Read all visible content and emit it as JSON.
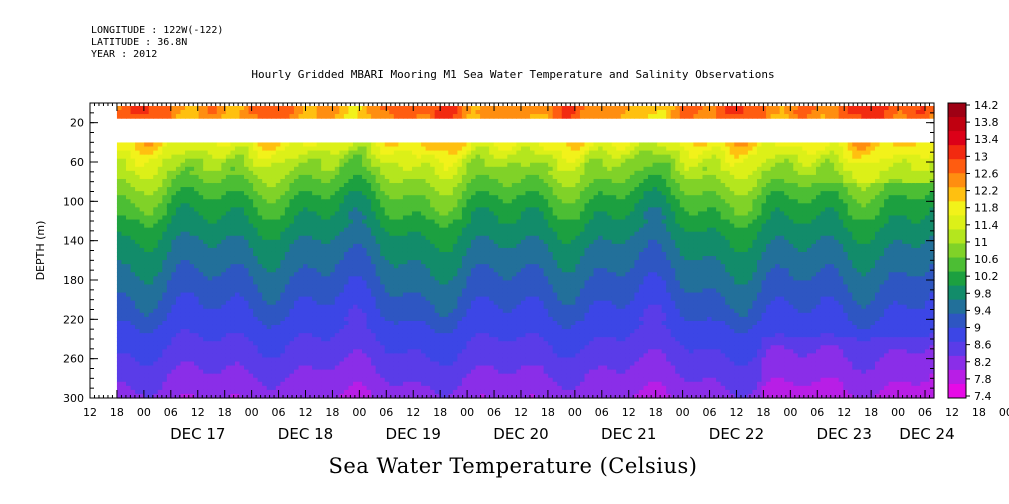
{
  "header": {
    "longitude": "LONGITUDE : 122W(-122)",
    "latitude": "LATITUDE : 36.8N",
    "year": "YEAR : 2012"
  },
  "title": "Hourly Gridded MBARI Mooring M1 Sea Water Temperature and Salinity Observations",
  "plot_title": "Sea Water Temperature (Celsius)",
  "colors": {
    "background": "#ffffff",
    "frame": "#000000"
  },
  "chart_data": {
    "type": "heatmap",
    "title": "Hourly Gridded MBARI Mooring M1 Sea Water Temperature and Salinity Observations",
    "subtitle": "Sea Water Temperature (Celsius)",
    "xlabel": "",
    "ylabel": "DEPTH (m)",
    "ylim": [
      300,
      0
    ],
    "y_reversed": true,
    "x_range_hours": [
      "DEC 16 12:00",
      "DEC 24 08:00"
    ],
    "x_hour_ticks": [
      "12",
      "18",
      "00",
      "06",
      "12",
      "18",
      "00",
      "06",
      "12",
      "18",
      "00",
      "06",
      "12",
      "18",
      "00",
      "06",
      "12",
      "18",
      "00",
      "06",
      "12",
      "18",
      "00",
      "06",
      "12",
      "18",
      "00",
      "06",
      "12",
      "18",
      "00",
      "06",
      "12",
      "18",
      "00",
      "06"
    ],
    "x_day_labels": [
      "DEC 17",
      "DEC 18",
      "DEC 19",
      "DEC 20",
      "DEC 21",
      "DEC 22",
      "DEC 23",
      "DEC 24"
    ],
    "y_ticks": [
      20,
      60,
      100,
      140,
      180,
      220,
      260,
      300
    ],
    "colorbar": {
      "levels": [
        7.4,
        7.8,
        8.2,
        8.6,
        9,
        9.4,
        9.8,
        10.2,
        10.6,
        11,
        11.4,
        11.8,
        12.2,
        12.6,
        13,
        13.4,
        13.8,
        14.2
      ],
      "labels": [
        "14.2",
        "13.8",
        "13.4",
        "13",
        "12.6",
        "12.2",
        "11.8",
        "11.4",
        "11",
        "10.6",
        "10.2",
        "9.8",
        "9.4",
        "9",
        "8.6",
        "8.2",
        "7.8",
        "7.4"
      ],
      "colors": [
        "#9e0014",
        "#c00010",
        "#dc0018",
        "#f22a10",
        "#ff5c10",
        "#ff8e10",
        "#ffc010",
        "#f2f21a",
        "#dcf018",
        "#b4e61e",
        "#80d228",
        "#4cbe34",
        "#1ca040",
        "#128c6a",
        "#22709a",
        "#2e56c2",
        "#3c46e6",
        "#5a3ce8",
        "#8a2ee8",
        "#b81ee6",
        "#e60ae6"
      ]
    },
    "data_start": "DEC 16 18:00",
    "depth_profile_typical": [
      {
        "depth": 10,
        "value": 13.3
      },
      {
        "depth": 40,
        "value": 12.4
      },
      {
        "depth": 60,
        "value": 11.6
      },
      {
        "depth": 100,
        "value": 10.6
      },
      {
        "depth": 140,
        "value": 9.9
      },
      {
        "depth": 180,
        "value": 9.4
      },
      {
        "depth": 220,
        "value": 8.9
      },
      {
        "depth": 260,
        "value": 8.4
      },
      {
        "depth": 300,
        "value": 7.9
      }
    ],
    "missing_depth_band": [
      15,
      40
    ]
  }
}
